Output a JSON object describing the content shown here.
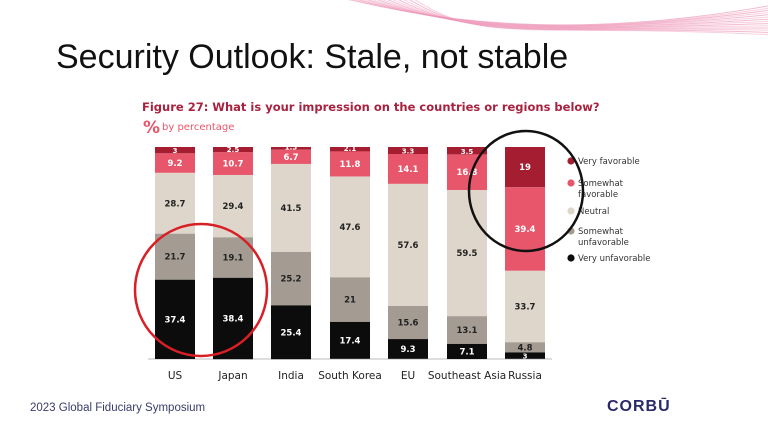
{
  "slide": {
    "title": "Security Outlook: Stale, not stable",
    "footer": "2023 Global Fiduciary Symposium",
    "logo": "CORBŪ"
  },
  "figure": {
    "title": "Figure 27: What is your impression on the countries or regions below?",
    "unit_icon": "%",
    "unit_label": "by percentage"
  },
  "colors": {
    "very_favorable": "#a51d30",
    "somewhat_favorable": "#e8566b",
    "neutral": "#ded6ca",
    "somewhat_unfavorable": "#a49c92",
    "very_unfavorable": "#0c0c0c",
    "highlight_red": "#d81f26",
    "highlight_black": "#111111"
  },
  "chart_data": {
    "type": "bar",
    "stacked": true,
    "title": "Figure 27: What is your impression on the countries or regions below?",
    "categories": [
      "US",
      "Japan",
      "India",
      "South Korea",
      "EU",
      "Southeast Asia",
      "Russia"
    ],
    "series": [
      {
        "name": "Very favorable",
        "values": [
          3,
          2.5,
          1.3,
          2.1,
          3.3,
          3.5,
          19
        ]
      },
      {
        "name": "Somewhat favorable",
        "values": [
          9.2,
          10.7,
          6.7,
          11.8,
          14.1,
          16.8,
          39.4
        ]
      },
      {
        "name": "Neutral",
        "values": [
          28.7,
          29.4,
          41.5,
          47.6,
          57.6,
          59.5,
          33.7
        ]
      },
      {
        "name": "Somewhat unfavorable",
        "values": [
          21.7,
          19.1,
          25.2,
          21,
          15.6,
          13.1,
          4.8
        ]
      },
      {
        "name": "Very unfavorable",
        "values": [
          37.4,
          38.4,
          25.4,
          17.4,
          9.3,
          7.1,
          3
        ]
      }
    ],
    "ylim": [
      0,
      100
    ],
    "legend_position": "right",
    "annotations": [
      {
        "shape": "circle",
        "color": "red",
        "around": [
          "US",
          "Japan"
        ]
      },
      {
        "shape": "circle",
        "color": "black",
        "around": [
          "Russia"
        ]
      }
    ]
  }
}
